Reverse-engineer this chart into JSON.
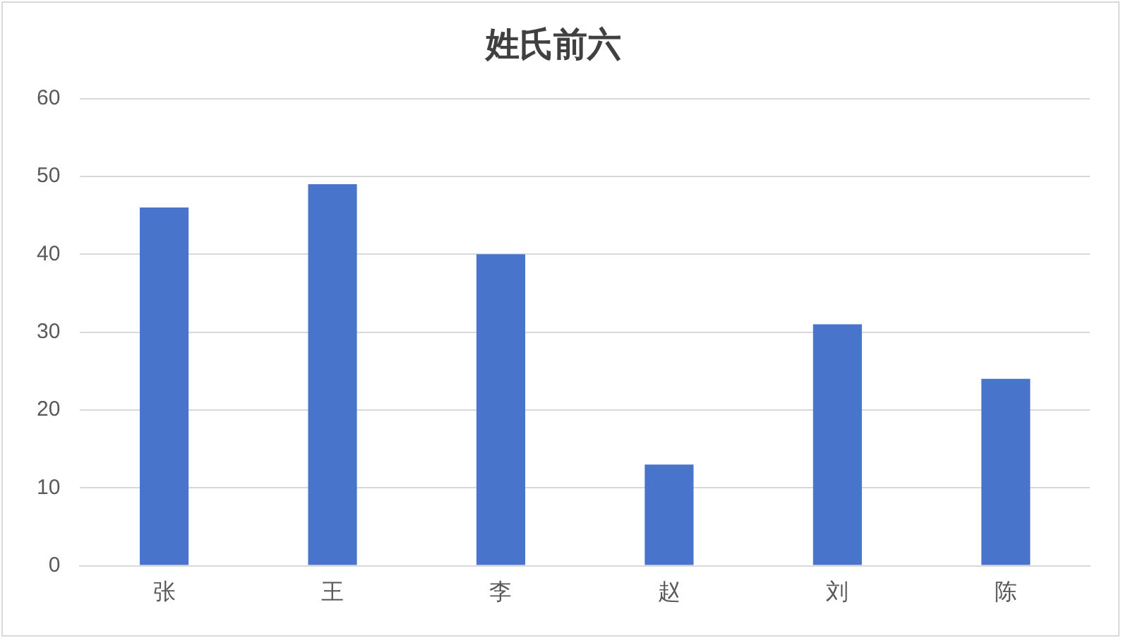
{
  "chart_data": {
    "type": "bar",
    "title": "姓氏前六",
    "categories": [
      "张",
      "王",
      "李",
      "赵",
      "刘",
      "陈"
    ],
    "values": [
      46,
      49,
      40,
      13,
      31,
      24
    ],
    "color": "#4874cb",
    "ylim": [
      0,
      60
    ],
    "yticks": [
      0,
      10,
      20,
      30,
      40,
      50,
      60
    ],
    "grid": "y",
    "legend": false
  }
}
